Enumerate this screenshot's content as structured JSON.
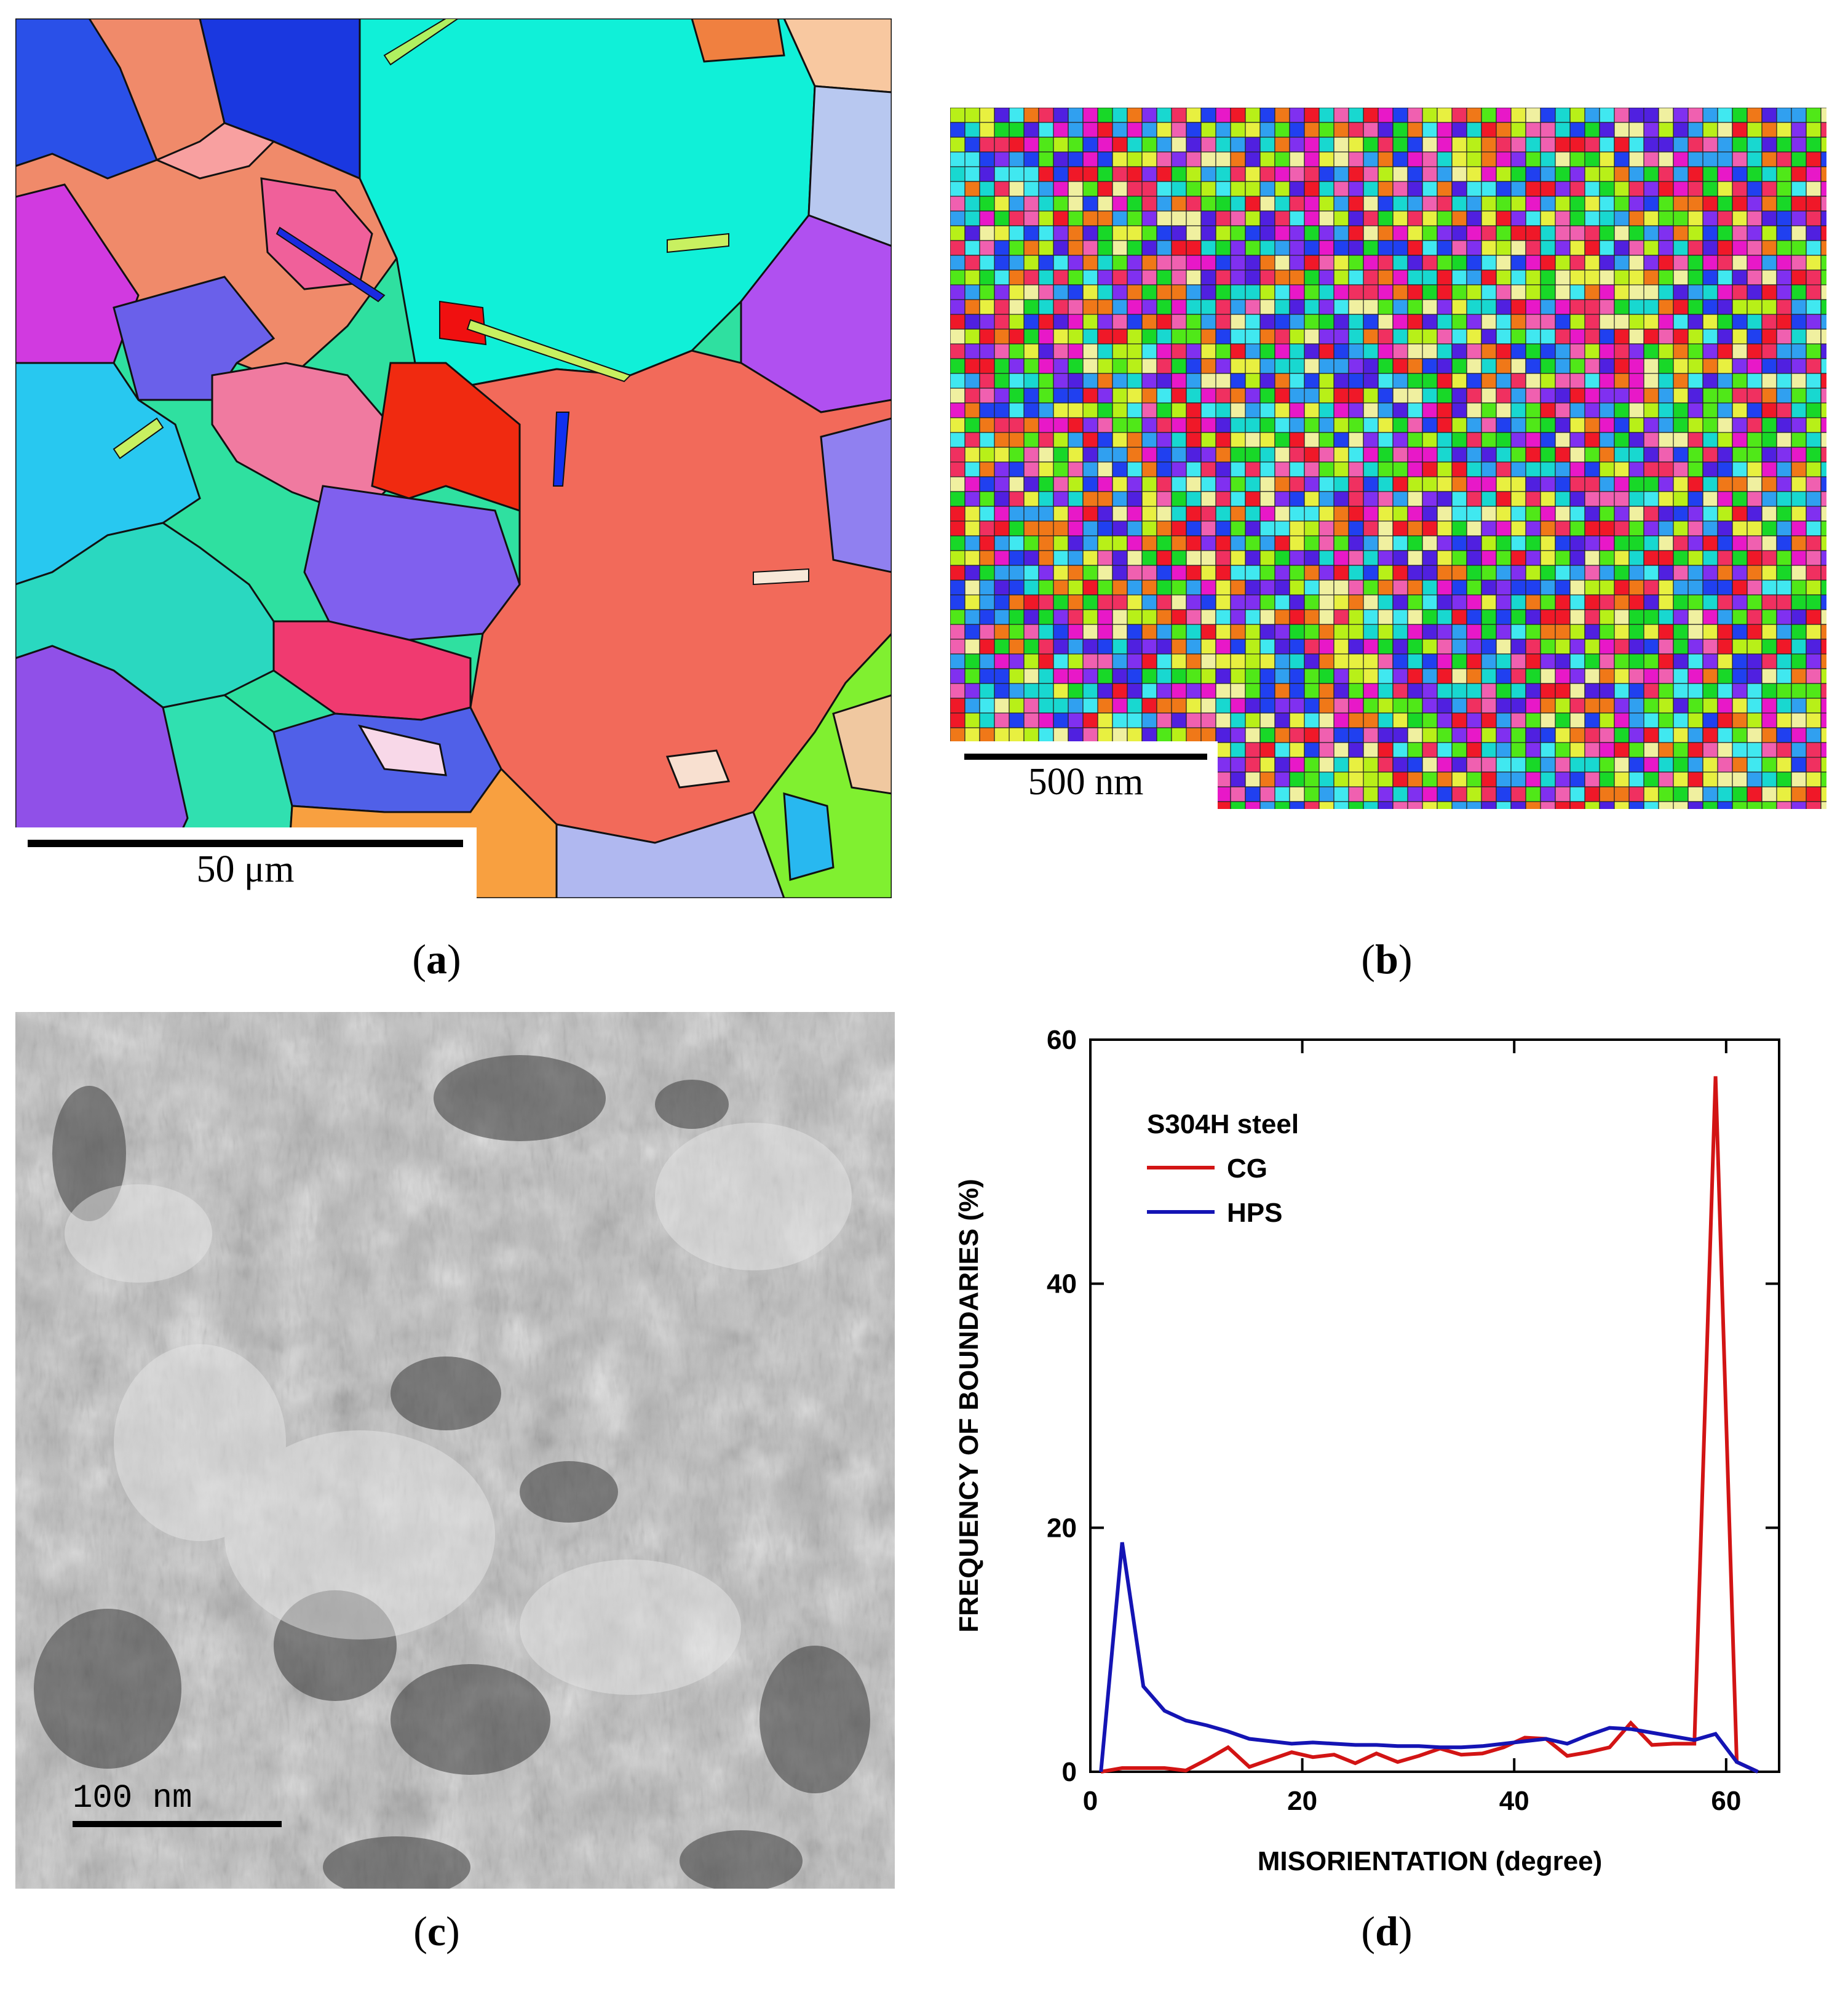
{
  "panels": {
    "a": {
      "caption_label": "a",
      "scale_bar": "50 μm"
    },
    "b": {
      "caption_label": "b",
      "scale_bar": "500 nm"
    },
    "c": {
      "caption_label": "c",
      "scale_bar": "100 nm"
    },
    "d": {
      "caption_label": "d"
    }
  },
  "colors": {
    "cg": "#d21414",
    "hps": "#1414b4"
  },
  "chart_data": {
    "type": "line",
    "xlabel": "MISORIENTATION (degree)",
    "ylabel": "FREQUENCY OF BOUNDARIES (%)",
    "xlim": [
      0,
      65
    ],
    "ylim": [
      0,
      60
    ],
    "xticks": [
      0,
      20,
      40,
      60
    ],
    "yticks": [
      0,
      20,
      40,
      60
    ],
    "legend_title": "S304H steel",
    "legend_position": "top-left",
    "grid": false,
    "series": [
      {
        "name": "CG",
        "color": "#d21414",
        "x": [
          1,
          3,
          5,
          7,
          9,
          11,
          13,
          15,
          17,
          19,
          21,
          23,
          25,
          27,
          29,
          31,
          33,
          35,
          37,
          39,
          41,
          43,
          45,
          47,
          49,
          51,
          53,
          55,
          57,
          59,
          61,
          63
        ],
        "y": [
          0,
          0.3,
          0.3,
          0.3,
          0.1,
          1.0,
          2.0,
          0.4,
          1.0,
          1.6,
          1.2,
          1.4,
          0.7,
          1.5,
          0.8,
          1.3,
          1.9,
          1.4,
          1.5,
          2.0,
          2.8,
          2.7,
          1.3,
          1.6,
          2.0,
          4.0,
          2.2,
          2.3,
          2.3,
          57.0,
          0.8,
          0.0
        ]
      },
      {
        "name": "HPS",
        "color": "#1414b4",
        "x": [
          1,
          3,
          5,
          7,
          9,
          11,
          13,
          15,
          17,
          19,
          21,
          23,
          25,
          27,
          29,
          31,
          33,
          35,
          37,
          39,
          41,
          43,
          45,
          47,
          49,
          51,
          53,
          55,
          57,
          59,
          61,
          63
        ],
        "y": [
          0,
          18.8,
          7.0,
          5.0,
          4.2,
          3.8,
          3.3,
          2.7,
          2.5,
          2.3,
          2.4,
          2.3,
          2.2,
          2.2,
          2.1,
          2.1,
          2.0,
          2.0,
          2.1,
          2.3,
          2.5,
          2.7,
          2.3,
          3.0,
          3.6,
          3.5,
          3.2,
          2.9,
          2.6,
          3.1,
          0.8,
          0.0
        ]
      }
    ]
  }
}
